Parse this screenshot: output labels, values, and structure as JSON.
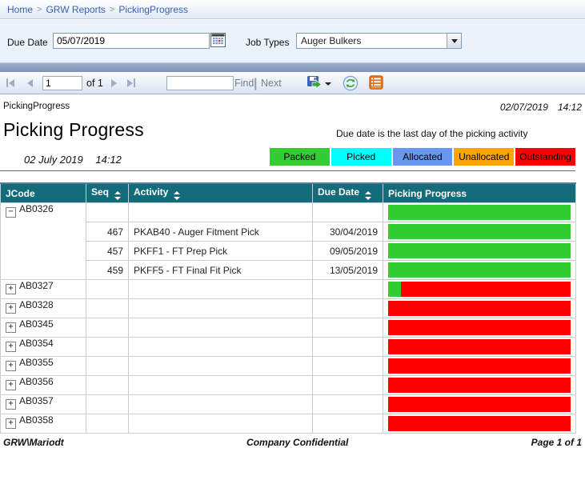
{
  "breadcrumb": {
    "items": [
      "Home",
      "GRW Reports",
      "PickingProgress"
    ],
    "separator": ">"
  },
  "parameters": {
    "due_date_label": "Due Date",
    "due_date_value": "05/07/2019",
    "job_types_label": "Job Types",
    "job_types_value": "Auger Bulkers"
  },
  "toolbar": {
    "page_value": "1",
    "of_label": "of 1",
    "find_label": "Find",
    "separator": "|",
    "next_label": "Next"
  },
  "report": {
    "header_left": "PickingProgress",
    "header_date": "02/07/2019",
    "header_time": "14:12",
    "title": "Picking Progress",
    "subtitle": "Due date is the last day of the picking activity",
    "run_date": "02 July 2019",
    "run_time": "14:12",
    "legend": [
      {
        "label": "Packed",
        "color": "#33CC33"
      },
      {
        "label": "Picked",
        "color": "#00FFFF"
      },
      {
        "label": "Allocated",
        "color": "#6699EE"
      },
      {
        "label": "Unallocated",
        "color": "#FFA500"
      },
      {
        "label": "Outstanding",
        "color": "#FF0000"
      }
    ],
    "columns": [
      {
        "label": "JCode",
        "sortable": false
      },
      {
        "label": "Seq",
        "sortable": true
      },
      {
        "label": "Activity",
        "sortable": true
      },
      {
        "label": "Due Date",
        "sortable": true
      },
      {
        "label": "Picking Progress",
        "sortable": false
      }
    ],
    "expand_symbols": {
      "expanded": "−",
      "collapsed": "+"
    },
    "groups": [
      {
        "jcode": "AB0326",
        "state": "expanded",
        "bar": [
          {
            "color": "#33CC33",
            "pct": 100
          }
        ],
        "details": [
          {
            "seq": "467",
            "activity": "PKAB40 - Auger Fitment Pick",
            "due_date": "30/04/2019",
            "bar": [
              {
                "color": "#33CC33",
                "pct": 100
              }
            ]
          },
          {
            "seq": "457",
            "activity": "PKFF1 - FT Prep Pick",
            "due_date": "09/05/2019",
            "bar": [
              {
                "color": "#33CC33",
                "pct": 100
              }
            ]
          },
          {
            "seq": "459",
            "activity": "PKFF5 - FT Final Fit Pick",
            "due_date": "13/05/2019",
            "bar": [
              {
                "color": "#33CC33",
                "pct": 100
              }
            ]
          }
        ]
      },
      {
        "jcode": "AB0327",
        "state": "collapsed",
        "bar": [
          {
            "color": "#33CC33",
            "pct": 7
          },
          {
            "color": "#FF0000",
            "pct": 93
          }
        ],
        "details": []
      },
      {
        "jcode": "AB0328",
        "state": "collapsed",
        "bar": [
          {
            "color": "#FF0000",
            "pct": 100
          }
        ],
        "details": []
      },
      {
        "jcode": "AB0345",
        "state": "collapsed",
        "bar": [
          {
            "color": "#FF0000",
            "pct": 100
          }
        ],
        "details": []
      },
      {
        "jcode": "AB0354",
        "state": "collapsed",
        "bar": [
          {
            "color": "#FF0000",
            "pct": 100
          }
        ],
        "details": []
      },
      {
        "jcode": "AB0355",
        "state": "collapsed",
        "bar": [
          {
            "color": "#FF0000",
            "pct": 100
          }
        ],
        "details": []
      },
      {
        "jcode": "AB0356",
        "state": "collapsed",
        "bar": [
          {
            "color": "#FF0000",
            "pct": 100
          }
        ],
        "details": []
      },
      {
        "jcode": "AB0357",
        "state": "collapsed",
        "bar": [
          {
            "color": "#FF0000",
            "pct": 100
          }
        ],
        "details": []
      },
      {
        "jcode": "AB0358",
        "state": "collapsed",
        "bar": [
          {
            "color": "#FF0000",
            "pct": 100
          }
        ],
        "details": []
      }
    ],
    "footer": {
      "left": "GRW\\Mariodt",
      "center": "Company Confidential",
      "right": "Page 1 of 1"
    }
  },
  "colors": {
    "header_teal": "#146B7A",
    "packed_green": "#33CC33",
    "outstanding_red": "#FF0000",
    "grid_line": "#CCCCCC"
  }
}
